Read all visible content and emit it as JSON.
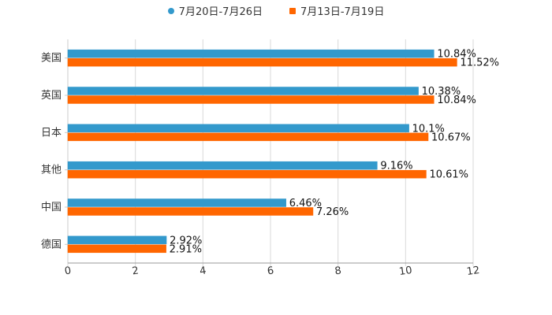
{
  "chart_data": {
    "type": "bar",
    "orientation": "horizontal",
    "title": "",
    "xlabel": "",
    "ylabel": "",
    "xlim": [
      0,
      12
    ],
    "x_ticks": [
      "0",
      "2",
      "4",
      "6",
      "8",
      "10",
      "12"
    ],
    "grid": true,
    "legend_position": "top-center",
    "categories": [
      "美国",
      "英国",
      "日本",
      "其他",
      "中国",
      "德国"
    ],
    "series": [
      {
        "name": "7月20日-7月26日",
        "color": "#3399cc",
        "values": [
          10.84,
          10.38,
          10.1,
          9.16,
          6.46,
          2.92
        ],
        "labels": [
          "10.84%",
          "10.38%",
          "10.1%",
          "9.16%",
          "6.46%",
          "2.92%"
        ]
      },
      {
        "name": "7月13日-7月19日",
        "color": "#ff6600",
        "values": [
          11.52,
          10.84,
          10.67,
          10.61,
          7.26,
          2.91
        ],
        "labels": [
          "11.52%",
          "10.84%",
          "10.67%",
          "10.61%",
          "7.26%",
          "2.91%"
        ]
      }
    ]
  }
}
